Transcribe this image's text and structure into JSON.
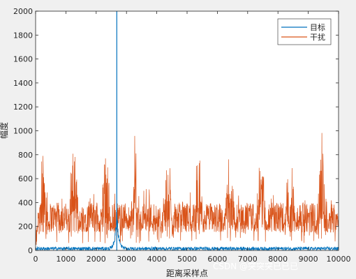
{
  "chart_data": {
    "type": "line",
    "title": "",
    "xlabel": "距离采样点",
    "ylabel": "幅度",
    "xlim": [
      0,
      10000
    ],
    "ylim": [
      0,
      2000
    ],
    "xticks": [
      0,
      1000,
      2000,
      3000,
      4000,
      5000,
      6000,
      7000,
      8000,
      9000,
      10000
    ],
    "yticks": [
      0,
      200,
      400,
      600,
      800,
      1000,
      1200,
      1400,
      1600,
      1800,
      2000
    ],
    "xtick_labels": [
      "0",
      "1000",
      "2000",
      "3000",
      "4000",
      "5000",
      "6000",
      "7000",
      "8000",
      "9000",
      "10000"
    ],
    "ytick_labels": [
      "0",
      "200",
      "400",
      "600",
      "800",
      "1000",
      "1200",
      "1400",
      "1600",
      "1800",
      "2000"
    ],
    "grid": false,
    "legend_position": "top-right",
    "series": [
      {
        "name": "目标",
        "color": "#0072bd",
        "baseline_noise": [
          0,
          30
        ],
        "peak": {
          "x": 2680,
          "y": 2000
        },
        "peak_skirt": {
          "x_range": [
            2450,
            2950
          ],
          "max_y": 400
        }
      },
      {
        "name": "干扰",
        "color": "#d95319",
        "burst_centers": [
          250,
          1250,
          2300,
          3300,
          4350,
          5350,
          6400,
          7450,
          8400,
          9450
        ],
        "burst_peak_range": [
          700,
          1020
        ],
        "floor_range": [
          150,
          400
        ],
        "min_near_start": 0
      }
    ]
  },
  "watermark": "CSDN @突突突已已已"
}
